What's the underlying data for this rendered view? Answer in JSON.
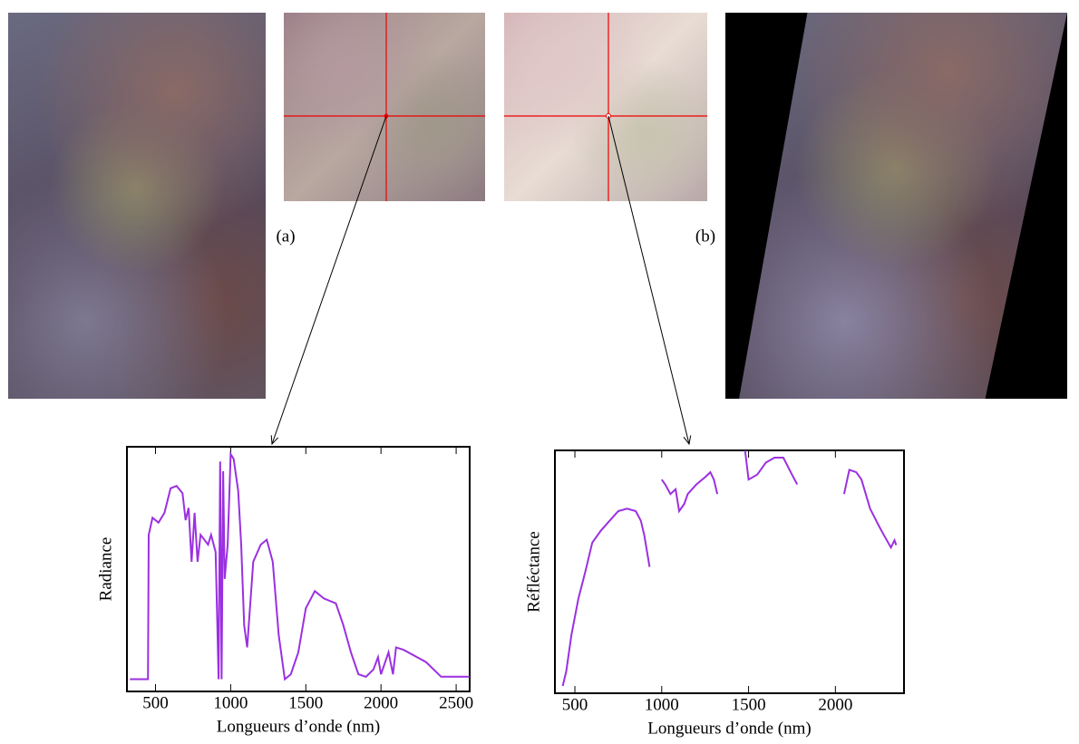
{
  "panels": {
    "left": "(a)",
    "right": "(b)"
  },
  "chart_data": [
    {
      "type": "line",
      "y_label": "Radiance",
      "x_label": "Longueurs d’onde (nm)",
      "color": "#9b30e0",
      "xlim": [
        310,
        2590
      ],
      "xticks": [
        500,
        1000,
        1500,
        2000,
        2500
      ],
      "ylim": [
        0,
        100
      ],
      "x": [
        330,
        450,
        455,
        480,
        520,
        560,
        600,
        640,
        680,
        700,
        720,
        740,
        760,
        780,
        800,
        850,
        870,
        900,
        920,
        930,
        940,
        950,
        960,
        980,
        1000,
        1020,
        1050,
        1070,
        1090,
        1110,
        1150,
        1200,
        1240,
        1280,
        1320,
        1360,
        1400,
        1450,
        1500,
        1560,
        1620,
        1700,
        1750,
        1800,
        1850,
        1900,
        1950,
        1980,
        2000,
        2050,
        2080,
        2100,
        2150,
        2300,
        2400,
        2590
      ],
      "values": [
        5,
        5,
        64,
        71,
        69,
        73,
        83,
        84,
        81,
        70,
        75,
        53,
        73,
        53,
        64,
        60,
        64,
        57,
        5,
        94,
        5,
        90,
        46,
        60,
        97,
        95,
        82,
        60,
        27,
        18,
        53,
        60,
        62,
        53,
        23,
        5,
        7,
        16,
        34,
        41,
        38,
        36,
        27,
        16,
        7,
        6,
        9,
        14,
        7,
        16,
        7,
        18,
        17,
        12,
        6,
        6
      ]
    },
    {
      "type": "line",
      "y_label": "Réfléctance",
      "x_label": "Longueurs d’onde (nm)",
      "color": "#9b30e0",
      "xlim": [
        385,
        2395
      ],
      "xticks": [
        500,
        1000,
        1500,
        2000
      ],
      "ylim": [
        0,
        100
      ],
      "x": [
        430,
        450,
        480,
        520,
        560,
        600,
        650,
        700,
        750,
        800,
        850,
        880,
        900,
        930,
        null,
        1000,
        1020,
        1050,
        1080,
        1100,
        1130,
        1150,
        1200,
        1250,
        1280,
        1300,
        1320,
        null,
        1480,
        1500,
        1550,
        1600,
        1650,
        1700,
        1750,
        1780,
        null,
        2050,
        2080,
        2120,
        2150,
        2200,
        2250,
        2280,
        2320,
        2340,
        2350
      ],
      "values": [
        3,
        9,
        24,
        39,
        50,
        62,
        67,
        71,
        75,
        76,
        75,
        71,
        65,
        52,
        null,
        88,
        86,
        82,
        84,
        75,
        78,
        82,
        86,
        89,
        91,
        88,
        82,
        null,
        100,
        88,
        90,
        95,
        97,
        97,
        90,
        86,
        null,
        82,
        92,
        91,
        88,
        76,
        69,
        65,
        60,
        63,
        61
      ]
    }
  ]
}
